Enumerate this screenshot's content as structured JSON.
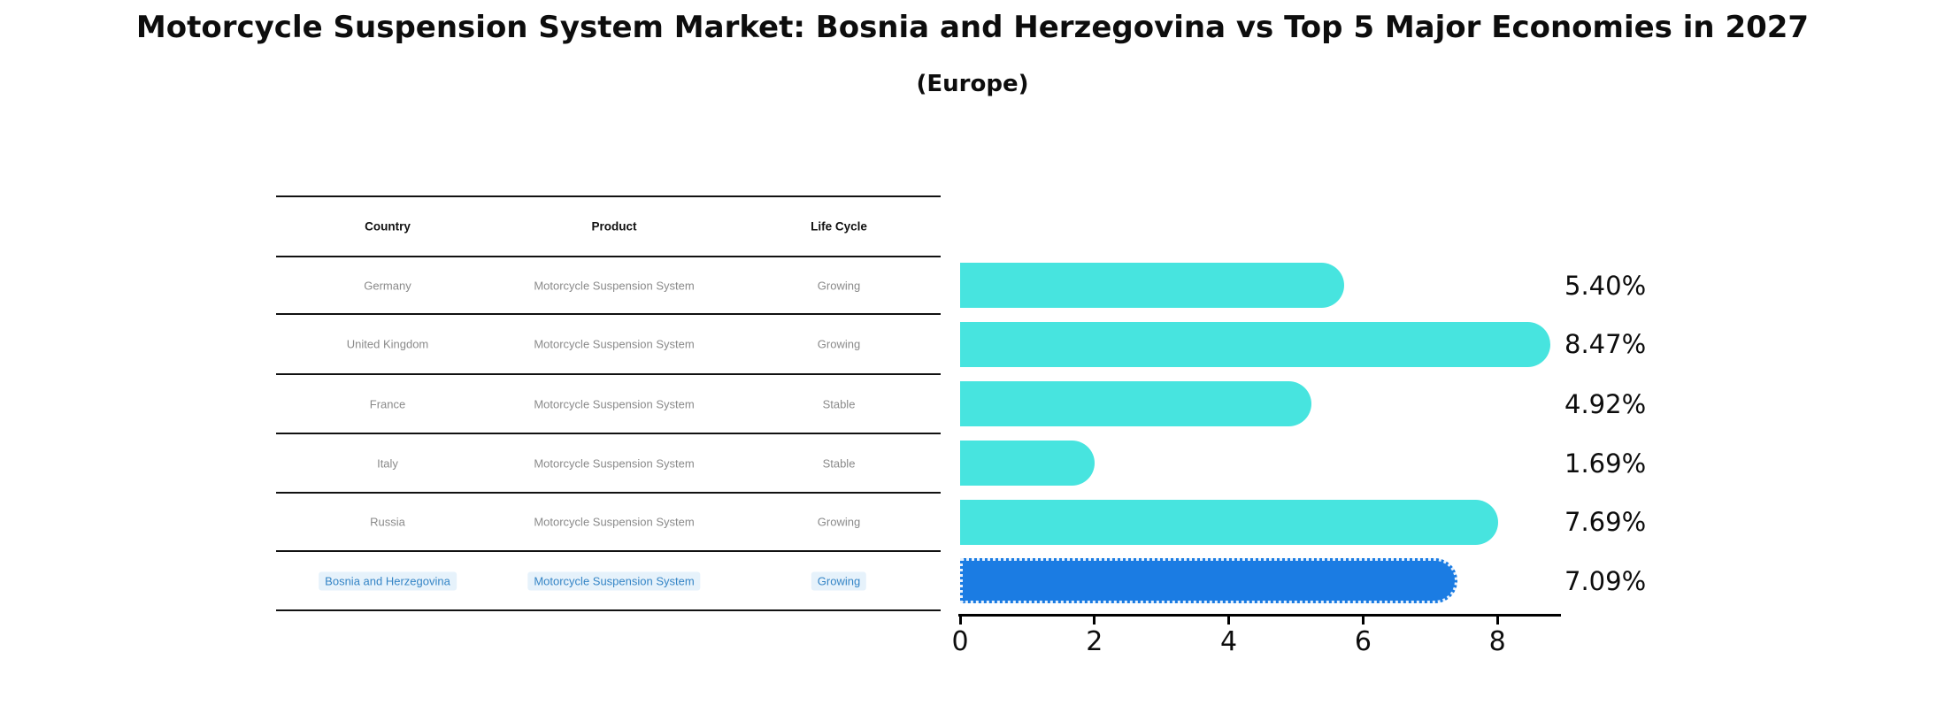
{
  "chart": {
    "title": "Motorcycle Suspension System Market: Bosnia and Herzegovina vs Top 5 Major Economies in 2027",
    "subtitle": "(Europe)"
  },
  "table": {
    "columns": [
      "Country",
      "Product",
      "Life Cycle"
    ],
    "rows": [
      {
        "country": "Germany",
        "product": "Motorcycle Suspension System",
        "life_cycle": "Growing",
        "highlighted": false
      },
      {
        "country": "United Kingdom",
        "product": "Motorcycle Suspension System",
        "life_cycle": "Growing",
        "highlighted": false
      },
      {
        "country": "France",
        "product": "Motorcycle Suspension System",
        "life_cycle": "Stable",
        "highlighted": false
      },
      {
        "country": "Italy",
        "product": "Motorcycle Suspension System",
        "life_cycle": "Stable",
        "highlighted": false
      },
      {
        "country": "Russia",
        "product": "Motorcycle Suspension System",
        "life_cycle": "Growing",
        "highlighted": false
      },
      {
        "country": "Bosnia and Herzegovina",
        "product": "Motorcycle Suspension System",
        "life_cycle": "Growing",
        "highlighted": true
      }
    ]
  },
  "chart_data": {
    "type": "bar",
    "orientation": "horizontal",
    "title": "Motorcycle Suspension System Market: Bosnia and Herzegovina vs Top 5 Major Economies in 2027",
    "subtitle": "(Europe)",
    "categories": [
      "Germany",
      "United Kingdom",
      "France",
      "Italy",
      "Russia",
      "Bosnia and Herzegovina"
    ],
    "values": [
      5.4,
      8.47,
      4.92,
      1.69,
      7.69,
      7.09
    ],
    "value_labels": [
      "5.40%",
      "8.47%",
      "4.92%",
      "1.69%",
      "7.69%",
      "7.09%"
    ],
    "xlim": [
      0,
      8.9
    ],
    "xticks": [
      "0",
      "2",
      "4",
      "6",
      "8"
    ],
    "grid": false,
    "legend": "none",
    "highlight_index": 5
  },
  "colors": {
    "bar": "#47e4df",
    "highlight_bar": "#1b7ce3",
    "highlight_text": "#3585c6",
    "table_text": "#8a8a8a",
    "axis": "#000000"
  }
}
